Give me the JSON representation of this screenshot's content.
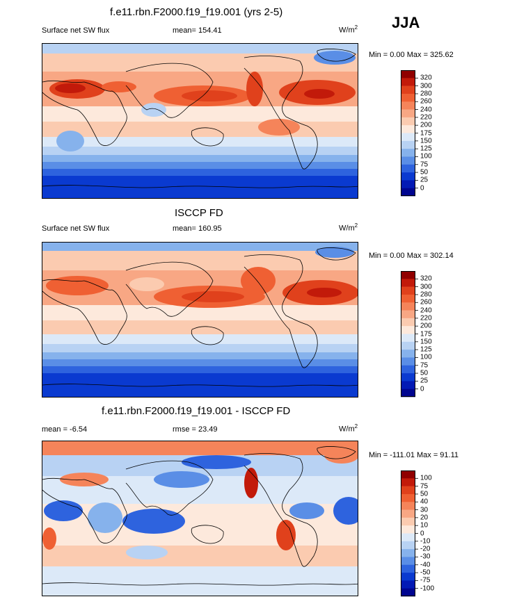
{
  "season": "JJA",
  "panels": [
    {
      "id": "model",
      "title": "f.e11.rbn.F2000.f19_f19.001 (yrs 2-5)",
      "left_label": "Surface net SW flux",
      "center_label": "mean= 154.41",
      "units": "W/m",
      "units_sup": "2",
      "range_label": "Min =   0.00 Max = 325.62",
      "colorbar": "abs"
    },
    {
      "id": "obs",
      "title": "ISCCP FD",
      "left_label": "Surface net SW flux",
      "center_label": "mean= 160.95",
      "units": "W/m",
      "units_sup": "2",
      "range_label": "Min =   0.00 Max = 302.14",
      "colorbar": "abs"
    },
    {
      "id": "diff",
      "title": "f.e11.rbn.F2000.f19_f19.001 - ISCCP FD",
      "left_label": "mean =  -6.54",
      "center_label": "rmse =  23.49",
      "units": "W/m",
      "units_sup": "2",
      "range_label": "Min = -111.01 Max =  91.11",
      "colorbar": "diff"
    }
  ],
  "colorbars": {
    "abs": {
      "labels": [
        "320",
        "300",
        "280",
        "260",
        "240",
        "220",
        "200",
        "175",
        "150",
        "125",
        "100",
        "75",
        "50",
        "25",
        "0"
      ],
      "colors": [
        "#900000",
        "#c21a0a",
        "#e0411c",
        "#ef6033",
        "#f5845a",
        "#f8a784",
        "#fbcbb0",
        "#fde9dc",
        "#dce9f8",
        "#b8d2f3",
        "#86b2ec",
        "#5a8ee6",
        "#2e63de",
        "#0a3ad0",
        "#031ab5",
        "#000590"
      ]
    },
    "diff": {
      "labels": [
        "100",
        "75",
        "50",
        "40",
        "30",
        "20",
        "10",
        "0",
        "-10",
        "-20",
        "-30",
        "-40",
        "-50",
        "-75",
        "-100"
      ],
      "colors": [
        "#900000",
        "#c21a0a",
        "#e0411c",
        "#ef6033",
        "#f5845a",
        "#f8a784",
        "#fbcbb0",
        "#fde9dc",
        "#dce9f8",
        "#b8d2f3",
        "#86b2ec",
        "#5a8ee6",
        "#2e63de",
        "#0a3ad0",
        "#031ab5",
        "#000590"
      ]
    }
  }
}
